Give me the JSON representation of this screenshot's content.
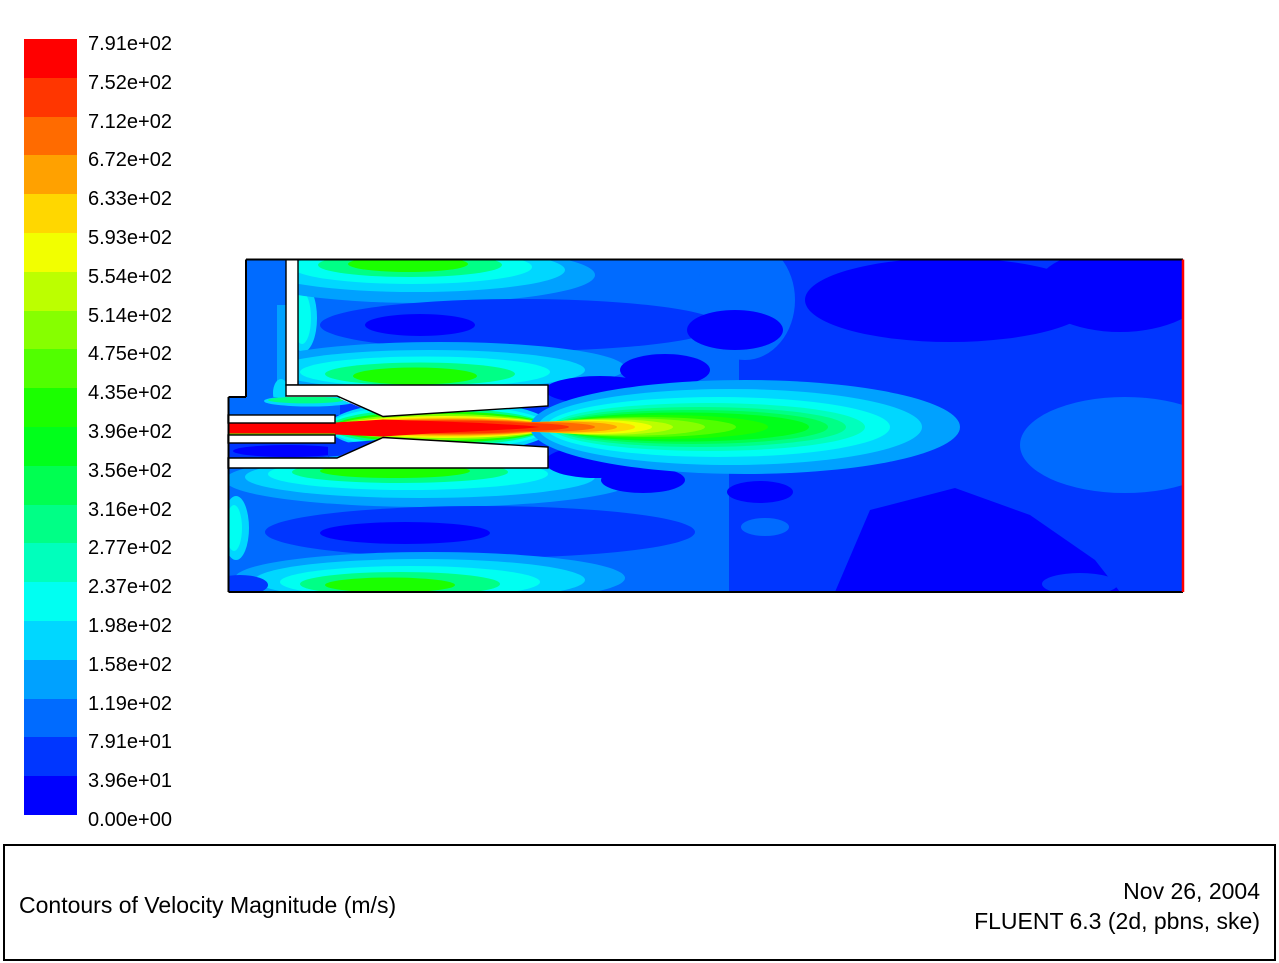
{
  "legend": {
    "labels": [
      "7.91e+02",
      "7.52e+02",
      "7.12e+02",
      "6.72e+02",
      "6.33e+02",
      "5.93e+02",
      "5.54e+02",
      "5.14e+02",
      "4.75e+02",
      "4.35e+02",
      "3.96e+02",
      "3.56e+02",
      "3.16e+02",
      "2.77e+02",
      "2.37e+02",
      "1.98e+02",
      "1.58e+02",
      "1.19e+02",
      "7.91e+01",
      "3.96e+01",
      "0.00e+00"
    ]
  },
  "footer": {
    "title": "Contours of Velocity Magnitude (m/s)",
    "date": "Nov 26, 2004",
    "solver": "FLUENT 6.3 (2d, pbns, ske)"
  },
  "chart_data": {
    "type": "heatmap",
    "subtype": "cfd-filled-contour",
    "title": "Contours of Velocity Magnitude (m/s)",
    "field": "Velocity Magnitude",
    "units": "m/s",
    "range": [
      0,
      791
    ],
    "levels": [
      791,
      752,
      712,
      672,
      633,
      593,
      554,
      514,
      475,
      435,
      396,
      356,
      316,
      277,
      237,
      198,
      158,
      119,
      79.1,
      39.6,
      0
    ],
    "level_labels": [
      "7.91e+02",
      "7.52e+02",
      "7.12e+02",
      "6.72e+02",
      "6.33e+02",
      "5.93e+02",
      "5.54e+02",
      "5.14e+02",
      "4.75e+02",
      "4.35e+02",
      "3.96e+02",
      "3.56e+02",
      "3.16e+02",
      "2.77e+02",
      "2.37e+02",
      "1.98e+02",
      "1.58e+02",
      "1.19e+02",
      "7.91e+01",
      "3.96e+01",
      "0.00e+00"
    ],
    "colormap": [
      "#FF0000",
      "#FF3600",
      "#FF6B00",
      "#FFA100",
      "#FFD700",
      "#F2FF00",
      "#BCFF00",
      "#86FF00",
      "#51FF00",
      "#1BFF00",
      "#00FF1B",
      "#00FF51",
      "#00FF86",
      "#00FFBC",
      "#00FFF2",
      "#00D7FF",
      "#00A1FF",
      "#006BFF",
      "#0036FF",
      "#0000FF"
    ],
    "legend_position": "left",
    "annotations": [
      "Nov 26, 2004",
      "FLUENT 6.3 (2d, pbns, ske)"
    ],
    "boundary_colors": {
      "wall_edge": "#000000",
      "outlet_edge": "#FF0000"
    },
    "description": "2D ejector: supersonic primary jet (max 791 m/s, red core) issuing from a tube through a converging-diverging nozzle into a large chamber; recirculation cells (green/cyan cores over blue) in the suction chambers above and below; jet decays to green/cyan then blue toward the red pressure-outlet at the right edge."
  }
}
